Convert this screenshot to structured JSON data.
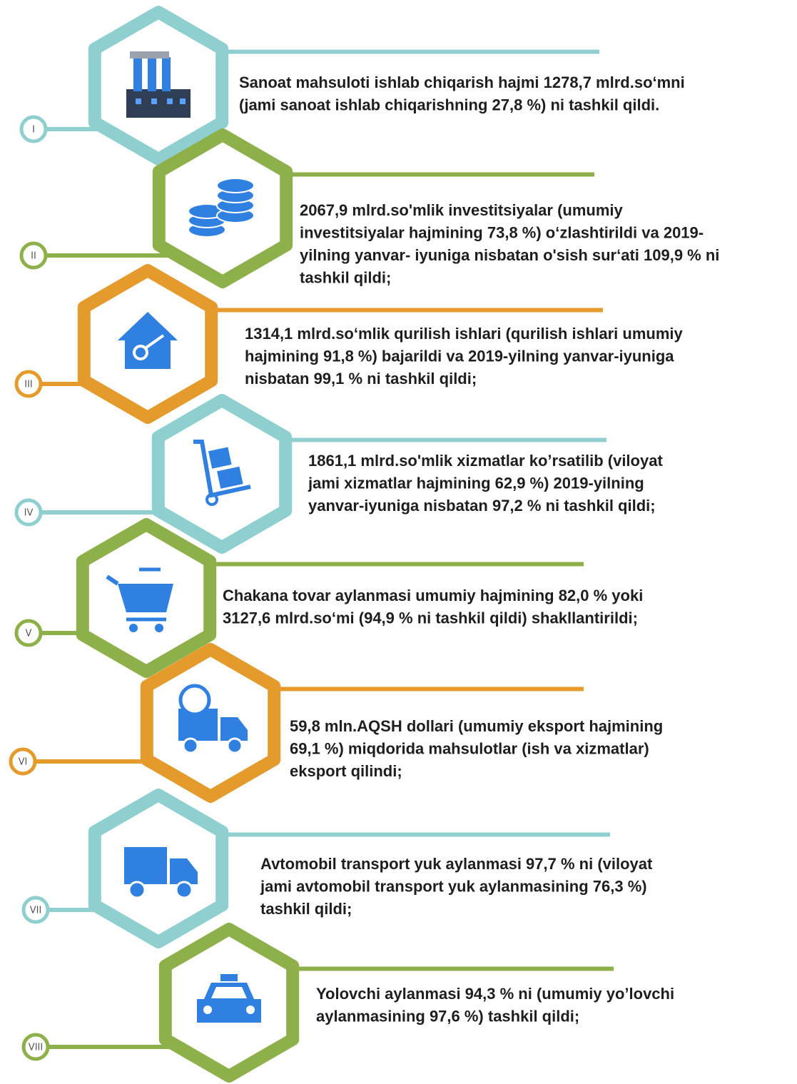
{
  "items": [
    {
      "numeral": "I",
      "color": "#8fcfd0",
      "lines": [
        "Sanoat mahsuloti ishlab chiqarish hajmi 1278,7 mlrd.so‘mni",
        "(jami sanoat ishlab chiqarishning 27,8 %)  ni tashkil qildi."
      ]
    },
    {
      "numeral": "II",
      "color": "#8db04a",
      "lines": [
        "2067,9 mlrd.so'mlik investitsiyalar (umumiy",
        "investitsiyalar hajmining 73,8 %) o‘zlashtirildi va 2019-",
        "yilning yanvar- iyuniga nisbatan o'sish sur‘ati 109,9 % ni",
        "tashkil qildi;"
      ]
    },
    {
      "numeral": "III",
      "color": "#e59b2b",
      "lines": [
        "1314,1 mlrd.so‘mlik qurilish ishlari (qurilish ishlari umumiy",
        "hajmining 91,8 %) bajarildi va 2019-yilning yanvar-iyuniga",
        "nisbatan  99,1 % ni tashkil qildi;"
      ]
    },
    {
      "numeral": "IV",
      "color": "#8fcfd0",
      "lines": [
        "1861,1 mlrd.so'mlik xizmatlar ko’rsatilib (viloyat",
        "jami xizmatlar hajmining 62,9 %) 2019-yilning",
        "yanvar-iyuniga nisbatan  97,2 % ni tashkil qildi;"
      ]
    },
    {
      "numeral": "V",
      "color": "#8db04a",
      "lines": [
        "Chakana tovar aylanmasi umumiy hajmining 82,0 % yoki",
        "3127,6 mlrd.so‘mi (94,9 % ni tashkil qildi) shakllantirildi;"
      ]
    },
    {
      "numeral": "VI",
      "color": "#e59b2b",
      "lines": [
        "59,8 mln.AQSH dollari (umumiy eksport hajmining",
        "69,1 %) miqdorida mahsulotlar (ish va xizmatlar)",
        "eksport qilindi;"
      ]
    },
    {
      "numeral": "VII",
      "color": "#8fcfd0",
      "lines": [
        "Avtomobil transport yuk aylanmasi 97,7 % ni (viloyat",
        "jami avtomobil transport yuk aylanmasining 76,3 %)",
        "tashkil qildi;"
      ]
    },
    {
      "numeral": "VIII",
      "color": "#8db04a",
      "lines": [
        "Yolovchi aylanmasi 94,3 % ni (umumiy yo’lovchi",
        "aylanmasining 97,6 %) tashkil qildi;"
      ]
    }
  ]
}
